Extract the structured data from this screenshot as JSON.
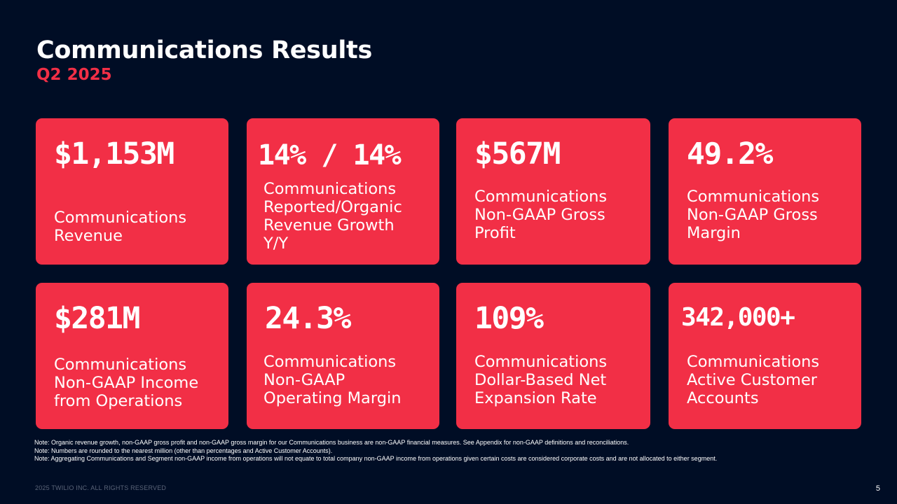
{
  "header": {
    "title": "Communications Results",
    "subtitle": "Q2 2025"
  },
  "colors": {
    "background": "#000d25",
    "accent": "#f22f46",
    "text": "#ffffff"
  },
  "cards": [
    {
      "value": "$1,153M",
      "label": "Communications\nRevenue"
    },
    {
      "value": "14% / 14%",
      "label": "Communications\nReported/Organic\nRevenue Growth\nY/Y"
    },
    {
      "value": "$567M",
      "label": "Communications\nNon-GAAP Gross\nProfit"
    },
    {
      "value": "49.2%",
      "label": "Communications\nNon-GAAP Gross\nMargin"
    },
    {
      "value": "$281M",
      "label": "Communications\nNon-GAAP Income\nfrom Operations"
    },
    {
      "value": "24.3%",
      "label": "Communications\nNon-GAAP\nOperating Margin"
    },
    {
      "value": "109%",
      "label": "Communications\nDollar-Based Net\nExpansion Rate"
    },
    {
      "value": "342,000+",
      "label": "Communications\nActive Customer\nAccounts"
    }
  ],
  "notes": [
    "Note: Organic revenue growth, non-GAAP gross profit and non-GAAP gross margin for our Communications business are non-GAAP financial measures. See Appendix for non-GAAP definitions and reconciliations.",
    "Note: Numbers are rounded to the nearest million (other than percentages and Active Customer Accounts).",
    "Note: Aggregating Communications and Segment non-GAAP income from operations will not equate to total company non-GAAP income from operations given certain costs are considered corporate costs and are not allocated to either segment."
  ],
  "footer": {
    "copyright": "2025 TWILIO INC. ALL RIGHTS RESERVED",
    "page_number": "5"
  }
}
